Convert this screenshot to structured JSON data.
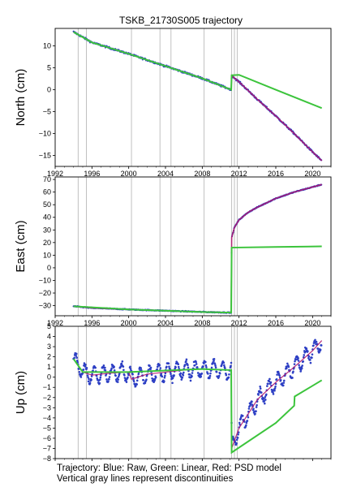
{
  "chart_data": {
    "type": "line",
    "title": "TSKB_21730S005 trajectory",
    "x_range": [
      1992,
      2022
    ],
    "x_ticks": [
      1992,
      1996,
      2000,
      2004,
      2008,
      2012,
      2016,
      2020
    ],
    "discontinuities": [
      1994.5,
      1995.4,
      2000.3,
      2003.4,
      2004.6,
      2008.2,
      2011.2,
      2011.5,
      2011.8
    ],
    "colors": {
      "raw": "#2d3fc4",
      "linear": "#3cc43c",
      "psd": "#b0186e",
      "discontinuity": "#b9b9b9"
    },
    "panels": [
      {
        "ylabel": "North (cm)",
        "ylim": [
          -17.5,
          14
        ],
        "yticks": [
          -15,
          -10,
          -5,
          0,
          5,
          10
        ],
        "raw": [
          [
            1994.0,
            13.2
          ],
          [
            1996,
            10.8
          ],
          [
            2000,
            8.2
          ],
          [
            2004,
            5.4
          ],
          [
            2008,
            2.6
          ],
          [
            2011.15,
            0.0
          ],
          [
            2011.2,
            3.2
          ],
          [
            2012,
            1.8
          ],
          [
            2014,
            -2.2
          ],
          [
            2016,
            -6.0
          ],
          [
            2018,
            -10.0
          ],
          [
            2020,
            -14.2
          ],
          [
            2021.0,
            -16.2
          ]
        ],
        "psd": [
          [
            1994.0,
            13.2
          ],
          [
            1996,
            10.8
          ],
          [
            2000,
            8.2
          ],
          [
            2004,
            5.4
          ],
          [
            2008,
            2.6
          ],
          [
            2011.15,
            0.0
          ],
          [
            2011.2,
            3.2
          ],
          [
            2012,
            1.8
          ],
          [
            2014,
            -2.2
          ],
          [
            2016,
            -6.0
          ],
          [
            2018,
            -10.0
          ],
          [
            2020,
            -14.2
          ],
          [
            2021.0,
            -16.2
          ]
        ],
        "linear": [
          [
            1994.0,
            13.2
          ],
          [
            1996,
            10.8
          ],
          [
            2000,
            8.2
          ],
          [
            2004,
            5.4
          ],
          [
            2008,
            2.6
          ],
          [
            2011.15,
            0.0
          ],
          [
            2011.2,
            3.3
          ],
          [
            2012,
            3.4
          ],
          [
            2016,
            0.0
          ],
          [
            2021.0,
            -4.2
          ]
        ]
      },
      {
        "ylabel": "East (cm)",
        "ylim": [
          -38,
          72
        ],
        "yticks": [
          -30,
          -20,
          -10,
          0,
          10,
          20,
          30,
          40,
          50,
          60,
          70
        ],
        "raw": [
          [
            1994.0,
            -30.5
          ],
          [
            1996,
            -31.8
          ],
          [
            2000,
            -33.0
          ],
          [
            2004,
            -34.0
          ],
          [
            2008,
            -35.0
          ],
          [
            2011.15,
            -35.5
          ],
          [
            2011.2,
            24.0
          ],
          [
            2011.5,
            32.0
          ],
          [
            2012,
            38.0
          ],
          [
            2013,
            44.0
          ],
          [
            2014,
            48.0
          ],
          [
            2016,
            55.0
          ],
          [
            2018,
            60.0
          ],
          [
            2020,
            64.0
          ],
          [
            2021.0,
            66.0
          ]
        ],
        "psd": [
          [
            1994.0,
            -30.5
          ],
          [
            1996,
            -31.8
          ],
          [
            2000,
            -33.0
          ],
          [
            2004,
            -34.0
          ],
          [
            2008,
            -35.0
          ],
          [
            2011.15,
            -35.5
          ],
          [
            2011.2,
            24.0
          ],
          [
            2011.5,
            32.0
          ],
          [
            2012,
            38.0
          ],
          [
            2013,
            44.0
          ],
          [
            2014,
            48.0
          ],
          [
            2016,
            55.0
          ],
          [
            2018,
            60.0
          ],
          [
            2020,
            64.0
          ],
          [
            2021.0,
            66.0
          ]
        ],
        "linear": [
          [
            1994.0,
            -30.5
          ],
          [
            2000,
            -33.0
          ],
          [
            2008,
            -35.0
          ],
          [
            2011.15,
            -35.5
          ],
          [
            2011.2,
            16.0
          ],
          [
            2016,
            16.5
          ],
          [
            2021.0,
            17.0
          ]
        ]
      },
      {
        "ylabel": "Up (cm)",
        "ylim": [
          -8,
          5
        ],
        "yticks": [
          -8,
          -7,
          -6,
          -5,
          -4,
          -3,
          -2,
          -1,
          0,
          1,
          2,
          3,
          4,
          5
        ],
        "raw": [
          [
            1994.0,
            1.8
          ],
          [
            1995,
            0.5
          ],
          [
            1996,
            0.2
          ],
          [
            1998,
            0.4
          ],
          [
            2000,
            0.5
          ],
          [
            2000.3,
            -0.2
          ],
          [
            2002,
            0.3
          ],
          [
            2004,
            0.5
          ],
          [
            2006,
            0.7
          ],
          [
            2008,
            0.8
          ],
          [
            2011.15,
            0.7
          ],
          [
            2011.2,
            -7.0
          ],
          [
            2012,
            -5.0
          ],
          [
            2014,
            -2.2
          ],
          [
            2016,
            -0.5
          ],
          [
            2018,
            1.0
          ],
          [
            2020,
            2.6
          ],
          [
            2021.0,
            3.6
          ]
        ],
        "psd": [
          [
            1994.0,
            1.8
          ],
          [
            1995,
            0.5
          ],
          [
            1996,
            0.2
          ],
          [
            1998,
            0.4
          ],
          [
            2000,
            0.5
          ],
          [
            2000.3,
            -0.2
          ],
          [
            2002,
            0.3
          ],
          [
            2004,
            0.5
          ],
          [
            2006,
            0.7
          ],
          [
            2008,
            0.8
          ],
          [
            2011.15,
            0.7
          ],
          [
            2011.2,
            -7.0
          ],
          [
            2012,
            -5.0
          ],
          [
            2014,
            -2.2
          ],
          [
            2016,
            -0.5
          ],
          [
            2018,
            1.0
          ],
          [
            2020,
            2.6
          ],
          [
            2021.0,
            3.6
          ]
        ],
        "linear": [
          [
            1994.0,
            1.8
          ],
          [
            1995,
            0.5
          ],
          [
            2000,
            0.5
          ],
          [
            2008,
            0.8
          ],
          [
            2011.15,
            0.7
          ],
          [
            2011.2,
            -7.4
          ],
          [
            2016,
            -4.5
          ],
          [
            2018.0,
            -2.8
          ],
          [
            2018.05,
            -1.9
          ],
          [
            2021.0,
            -0.3
          ]
        ]
      }
    ],
    "caption_lines": [
      "Trajectory: Blue: Raw, Green: Linear, Red: PSD model",
      "Vertical gray lines represent discontinuities"
    ]
  }
}
